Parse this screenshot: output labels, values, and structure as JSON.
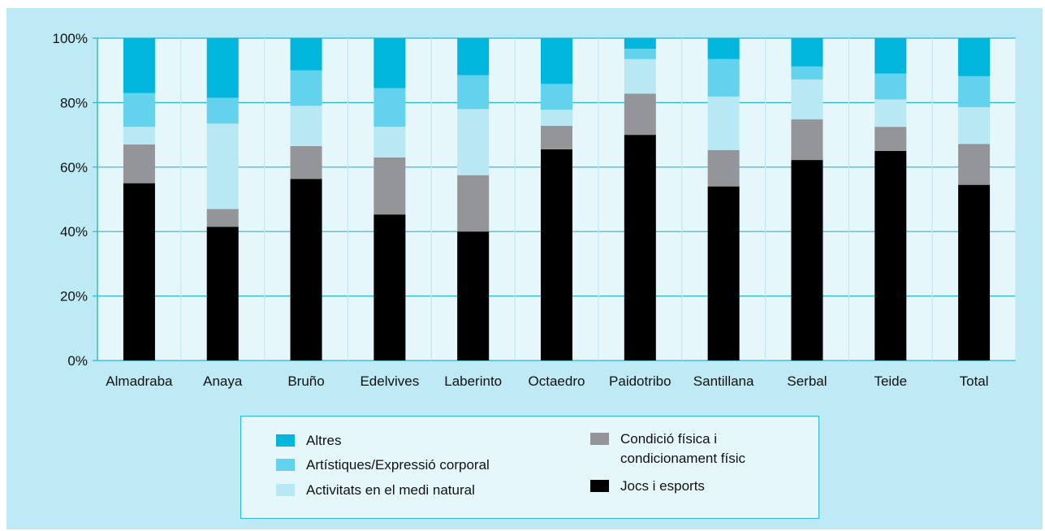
{
  "chart_data": {
    "type": "bar",
    "stacked": true,
    "categories": [
      "Almadraba",
      "Anaya",
      "Bruño",
      "Edelvives",
      "Laberinto",
      "Octaedro",
      "Paidotribo",
      "Santillana",
      "Serbal",
      "Teide",
      "Total"
    ],
    "yticks": [
      "0%",
      "20%",
      "40%",
      "60%",
      "80%",
      "100%"
    ],
    "ylim": [
      0,
      100
    ],
    "series": [
      {
        "name": "Jocs i esports",
        "color": "#000000",
        "values": [
          55,
          41.5,
          56.3,
          45.3,
          40,
          65.5,
          70,
          54,
          62.2,
          65,
          54.5
        ]
      },
      {
        "name": "Condició física i condicionament físic",
        "color": "#939598",
        "values": [
          12,
          5.5,
          10.2,
          17.7,
          17.5,
          7.3,
          12.8,
          11.3,
          12.6,
          7.5,
          12.7
        ]
      },
      {
        "name": "Activitats en el medi natural",
        "color": "#b7e8f3",
        "values": [
          5.5,
          26.5,
          12.5,
          9.5,
          20.5,
          5,
          10.7,
          16.6,
          12.4,
          8.5,
          11.4
        ]
      },
      {
        "name": "Artístiques/Expressió corporal",
        "color": "#63d2ec",
        "values": [
          10.5,
          8,
          11,
          12,
          10.5,
          8,
          3.2,
          11.6,
          4,
          8,
          9.6
        ]
      },
      {
        "name": "Altres",
        "color": "#00b6dd",
        "values": [
          17,
          18.5,
          10,
          15.5,
          11.5,
          14.2,
          3.3,
          6.5,
          8.8,
          11,
          11.8
        ]
      }
    ],
    "grid": true,
    "legend_position": "bottom-center"
  },
  "legend": {
    "items": [
      {
        "label": "Altres",
        "color": "#00b6dd"
      },
      {
        "label": "Artístiques/Expressió corporal",
        "color": "#63d2ec"
      },
      {
        "label": "Activitats en el medi natural",
        "color": "#b7e8f3"
      },
      {
        "label": "Condició física i\ncondicionament físic",
        "color": "#939598"
      },
      {
        "label": "Jocs i esports",
        "color": "#000000"
      }
    ]
  }
}
